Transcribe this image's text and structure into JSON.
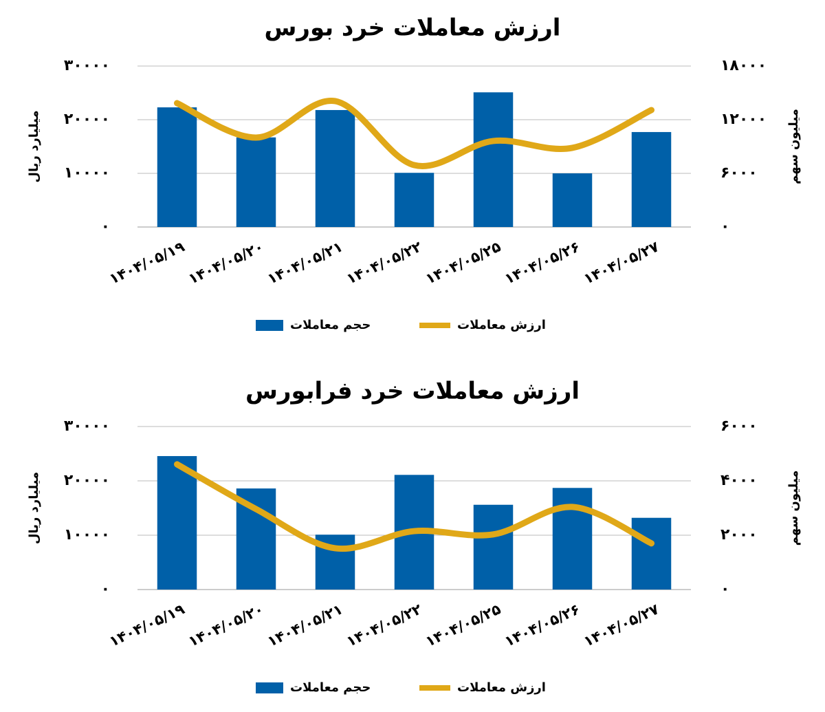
{
  "chart_data": [
    {
      "type": "combo",
      "title": "ارزش معاملات خرد بورس",
      "ylabel": "میلیارد ریال",
      "y2label": "میلیون سهم",
      "categories": [
        "۱۴۰۴/۰۵/۱۹",
        "۱۴۰۴/۰۵/۲۰",
        "۱۴۰۴/۰۵/۲۱",
        "۱۴۰۴/۰۵/۲۲",
        "۱۴۰۴/۰۵/۲۵",
        "۱۴۰۴/۰۵/۲۶",
        "۱۴۰۴/۰۵/۲۷"
      ],
      "series": [
        {
          "name": "حجم معاملات",
          "type": "bar",
          "color": "#0060a8",
          "values": [
            22300,
            16700,
            21800,
            10100,
            25100,
            10000,
            17700
          ]
        },
        {
          "name": "ارزش معاملات",
          "type": "line",
          "axis": "y2",
          "color": "#e0a818",
          "values": [
            13850,
            10000,
            14080,
            6920,
            9620,
            8850,
            13080
          ]
        }
      ],
      "ylim": [
        0,
        30000
      ],
      "yticks": [
        {
          "value": 0,
          "label": "۰"
        },
        {
          "value": 10000,
          "label": "۱۰۰۰۰"
        },
        {
          "value": 20000,
          "label": "۲۰۰۰۰"
        },
        {
          "value": 30000,
          "label": "۳۰۰۰۰"
        }
      ],
      "y2lim": [
        0,
        18000
      ],
      "y2ticks": [
        {
          "value": 0,
          "label": "۰"
        },
        {
          "value": 6000,
          "label": "۶۰۰۰"
        },
        {
          "value": 12000,
          "label": "۱۲۰۰۰"
        },
        {
          "value": 18000,
          "label": "۱۸۰۰۰"
        }
      ],
      "grid": true
    },
    {
      "type": "combo",
      "title": "ارزش معاملات خرد فرابورس",
      "ylabel": "میلیارد ریال",
      "y2label": "میلیون سهم",
      "categories": [
        "۱۴۰۴/۰۵/۱۹",
        "۱۴۰۴/۰۵/۲۰",
        "۱۴۰۴/۰۵/۲۱",
        "۱۴۰۴/۰۵/۲۲",
        "۱۴۰۴/۰۵/۲۵",
        "۱۴۰۴/۰۵/۲۶",
        "۱۴۰۴/۰۵/۲۷"
      ],
      "series": [
        {
          "name": "حجم معاملات",
          "type": "bar",
          "color": "#0060a8",
          "values": [
            24560,
            18600,
            10100,
            21100,
            15600,
            18700,
            13200
          ]
        },
        {
          "name": "ارزش معاملات",
          "type": "line",
          "axis": "y2",
          "color": "#e0a818",
          "values": [
            4610,
            2960,
            1520,
            2150,
            2030,
            3040,
            1700
          ]
        }
      ],
      "ylim": [
        0,
        30000
      ],
      "yticks": [
        {
          "value": 0,
          "label": "۰"
        },
        {
          "value": 10000,
          "label": "۱۰۰۰۰"
        },
        {
          "value": 20000,
          "label": "۲۰۰۰۰"
        },
        {
          "value": 30000,
          "label": "۳۰۰۰۰"
        }
      ],
      "y2lim": [
        0,
        6000
      ],
      "y2ticks": [
        {
          "value": 0,
          "label": "۰"
        },
        {
          "value": 2000,
          "label": "۲۰۰۰"
        },
        {
          "value": 4000,
          "label": "۴۰۰۰"
        },
        {
          "value": 6000,
          "label": "۶۰۰۰"
        }
      ],
      "grid": true
    }
  ]
}
